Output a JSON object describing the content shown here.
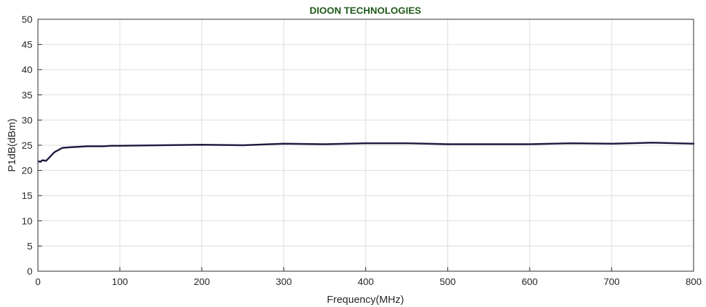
{
  "chart_data": {
    "type": "line",
    "title": "DIOON TECHNOLOGIES",
    "xlabel": "Frequency(MHz)",
    "ylabel": "P1dB(dBm)",
    "xlim": [
      0,
      800
    ],
    "ylim": [
      0,
      50
    ],
    "x_ticks": [
      "0",
      "100",
      "200",
      "300",
      "400",
      "500",
      "600",
      "700",
      "800"
    ],
    "y_ticks": [
      "0",
      "5",
      "10",
      "15",
      "20",
      "25",
      "30",
      "35",
      "40",
      "45",
      "50"
    ],
    "grid": true,
    "series": [
      {
        "x": [
          1,
          3,
          5,
          7,
          10,
          20,
          30,
          40,
          50,
          60,
          80,
          90,
          100,
          150,
          200,
          250,
          300,
          350,
          400,
          450,
          500,
          550,
          600,
          650,
          700,
          750,
          800
        ],
        "y": [
          21.8,
          21.7,
          22.0,
          22.0,
          21.9,
          23.6,
          24.5,
          24.6,
          24.7,
          24.8,
          24.8,
          24.9,
          24.9,
          25.0,
          25.1,
          25.0,
          25.3,
          25.2,
          25.4,
          25.4,
          25.2,
          25.2,
          25.2,
          25.4,
          25.3,
          25.5,
          25.3
        ]
      }
    ]
  },
  "colors": {
    "line": "#1c1a40",
    "title": "#1f5a1a",
    "grid": "#dcdcdc",
    "axis": "#262626"
  }
}
